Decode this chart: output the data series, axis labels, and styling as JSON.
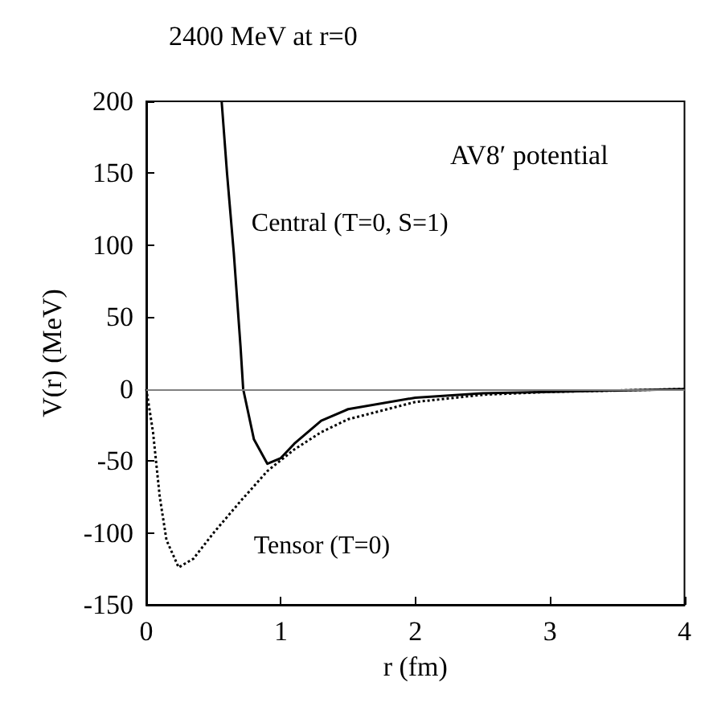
{
  "chart_data": {
    "type": "line",
    "xlabel": "r (fm)",
    "ylabel": "V(r) (MeV)",
    "annotations": [
      "2400 MeV at r=0",
      "AV8′ potential"
    ],
    "xlim": [
      0,
      4
    ],
    "xticks": [
      0,
      1,
      2,
      3,
      4
    ],
    "ylim": [
      -150,
      200
    ],
    "yticks": [
      -150,
      -100,
      -50,
      0,
      50,
      100,
      150,
      200
    ],
    "marker": "none",
    "ref_lines": [
      {
        "axis": "y",
        "value": 0,
        "color": "#808080"
      }
    ],
    "series": [
      {
        "name": "Central (T=0, S=1)",
        "color": "#000000",
        "line_style": "solid",
        "x": [
          0.56,
          0.6,
          0.65,
          0.7,
          0.72,
          0.8,
          0.9,
          1.0,
          1.1,
          1.3,
          1.5,
          2,
          2.5,
          3,
          4
        ],
        "values": [
          200,
          150,
          95,
          30,
          0,
          -35,
          -52,
          -48,
          -38,
          -22,
          -14,
          -6,
          -3,
          -2,
          0
        ]
      },
      {
        "name": "Tensor (T=0)",
        "color": "#000000",
        "line_style": "dotted",
        "x": [
          0,
          0.05,
          0.1,
          0.15,
          0.24,
          0.35,
          0.5,
          0.7,
          0.9,
          1.1,
          1.3,
          1.5,
          2,
          2.5,
          3,
          4
        ],
        "values": [
          0,
          -30,
          -75,
          -105,
          -124,
          -118,
          -100,
          -78,
          -57,
          -42,
          -30,
          -21,
          -9,
          -4,
          -2,
          0
        ]
      }
    ]
  }
}
